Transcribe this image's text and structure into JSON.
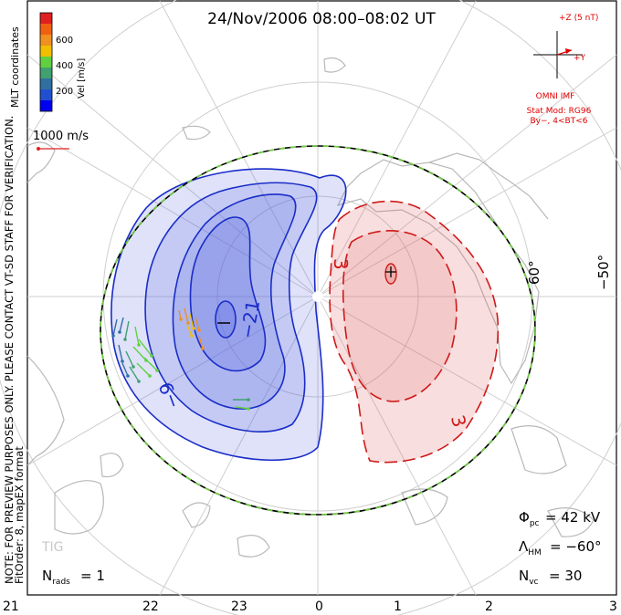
{
  "title": "24/Nov/2006 08:00–08:02 UT",
  "coordinate_label": "MLT coordinates",
  "color_scale": {
    "label": "Vel [m/s]",
    "tick_labels": [
      "600",
      "400",
      "200"
    ],
    "colors": [
      "#e02020",
      "#f06010",
      "#f09020",
      "#f0c000",
      "#60d040",
      "#40a070",
      "#3070a0",
      "#2050d0",
      "#0000f0"
    ]
  },
  "velocity_reference": "1000 m/s",
  "side_note": "NOTE: FOR PREVIEW PURPOSES ONLY. PLEASE CONTACT VT-SD STAFF FOR VERIFICATION.",
  "fit_info": "FitOrder: 8, mapEX format",
  "imf": {
    "z_label": "+Z (5 nT)",
    "y_label": "+Y",
    "source": "OMNI IMF",
    "model": "Stat Mod: RG96",
    "condition": "By−, 4<BT<6"
  },
  "latitude_labels": [
    "60°",
    "−50°"
  ],
  "contour_labels": [
    "−21",
    "−9",
    "3",
    "3"
  ],
  "mlt_labels": [
    "21",
    "22",
    "23",
    "0",
    "1",
    "2",
    "3"
  ],
  "station": "TIG",
  "stats": {
    "cpcp_symbol": "Φ",
    "cpcp_sub": "pc",
    "cpcp_value": "= 42 kV",
    "hm_symbol": "Λ",
    "hm_sub": "HM",
    "hm_value": "= −60°",
    "nvc_symbol": "N",
    "nvc_sub": "vc",
    "nvc_value": "= 30",
    "nrads_symbol": "N",
    "nrads_sub": "rads",
    "nrads_value": "= 1"
  },
  "colors": {
    "negative_contour": "#1a2dc8",
    "positive_contour": "#d01818",
    "negative_fill": "#5060e0",
    "positive_fill": "#e06a6a",
    "imf_red": "#e00000",
    "continent": "#b8b8b8",
    "grid": "#cfcfcf",
    "boundary_dash": "#70d040"
  }
}
